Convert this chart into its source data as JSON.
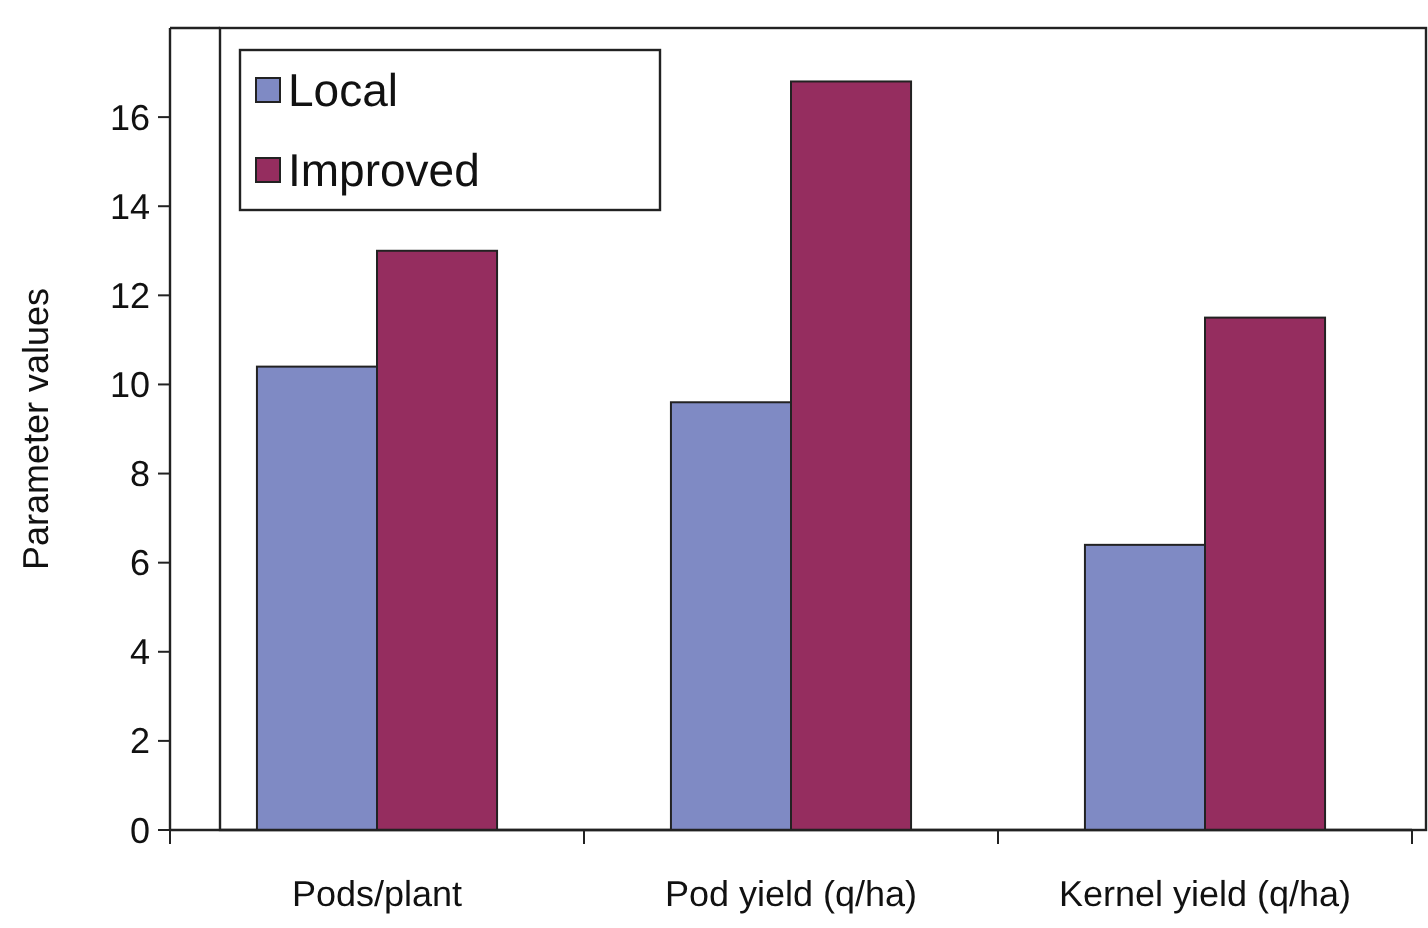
{
  "chart_data": {
    "type": "bar",
    "ylabel": "Parameter values",
    "categories": [
      "Pods/plant",
      "Pod yield (q/ha)",
      "Kernel yield (q/ha)"
    ],
    "series": [
      {
        "name": "Local",
        "color": "#7f8ac4",
        "values": [
          10.4,
          9.6,
          6.4
        ]
      },
      {
        "name": "Improved",
        "color": "#952d5f",
        "values": [
          13.0,
          16.8,
          11.5
        ]
      }
    ],
    "ylim": [
      0,
      18
    ],
    "yticks": [
      0,
      2,
      4,
      6,
      8,
      10,
      12,
      14,
      16
    ],
    "grid": false,
    "legend": "top left"
  }
}
